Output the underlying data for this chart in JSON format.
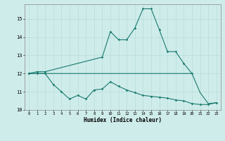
{
  "x_full": [
    0,
    1,
    2,
    3,
    4,
    5,
    6,
    7,
    8,
    9,
    10,
    11,
    12,
    13,
    14,
    15,
    16,
    17,
    18,
    19,
    20,
    21,
    22,
    23
  ],
  "line1_x": [
    0,
    1,
    2,
    9,
    10,
    11,
    12,
    13,
    14,
    15,
    16,
    17,
    18,
    19,
    20
  ],
  "line1_y": [
    12.0,
    12.1,
    12.1,
    12.9,
    14.3,
    13.85,
    13.85,
    14.5,
    15.55,
    15.55,
    14.4,
    13.2,
    13.2,
    12.55,
    12.0
  ],
  "line2_x": [
    0,
    1,
    2,
    3,
    4,
    5,
    6,
    7,
    8,
    9,
    10,
    11,
    12,
    13,
    14,
    15,
    16,
    17,
    18,
    19,
    20,
    21,
    22,
    23
  ],
  "line2_y": [
    12.0,
    12.0,
    12.0,
    12.0,
    12.0,
    12.0,
    12.0,
    12.0,
    12.0,
    12.0,
    12.0,
    12.0,
    12.0,
    12.0,
    12.0,
    12.0,
    12.0,
    12.0,
    12.0,
    12.0,
    12.0,
    10.95,
    10.35,
    10.4
  ],
  "line3_x": [
    0,
    1,
    2,
    3,
    4,
    5,
    6,
    7,
    8,
    9,
    10,
    11,
    12,
    13,
    14,
    15,
    16,
    17,
    18,
    19,
    20,
    21,
    22,
    23
  ],
  "line3_y": [
    12.0,
    12.0,
    12.0,
    11.4,
    11.0,
    10.6,
    10.8,
    10.6,
    11.1,
    11.15,
    11.55,
    11.3,
    11.1,
    10.95,
    10.8,
    10.75,
    10.7,
    10.65,
    10.55,
    10.5,
    10.35,
    10.3,
    10.3,
    10.4
  ],
  "xlim": [
    -0.5,
    23.5
  ],
  "ylim": [
    10,
    15.8
  ],
  "yticks": [
    10,
    11,
    12,
    13,
    14,
    15
  ],
  "xticks": [
    0,
    1,
    2,
    3,
    4,
    5,
    6,
    7,
    8,
    9,
    10,
    11,
    12,
    13,
    14,
    15,
    16,
    17,
    18,
    19,
    20,
    21,
    22,
    23
  ],
  "xlabel": "Humidex (Indice chaleur)",
  "line_color": "#1a7a6e",
  "bg_color": "#ceecea",
  "grid_color": "#b8ddd9"
}
